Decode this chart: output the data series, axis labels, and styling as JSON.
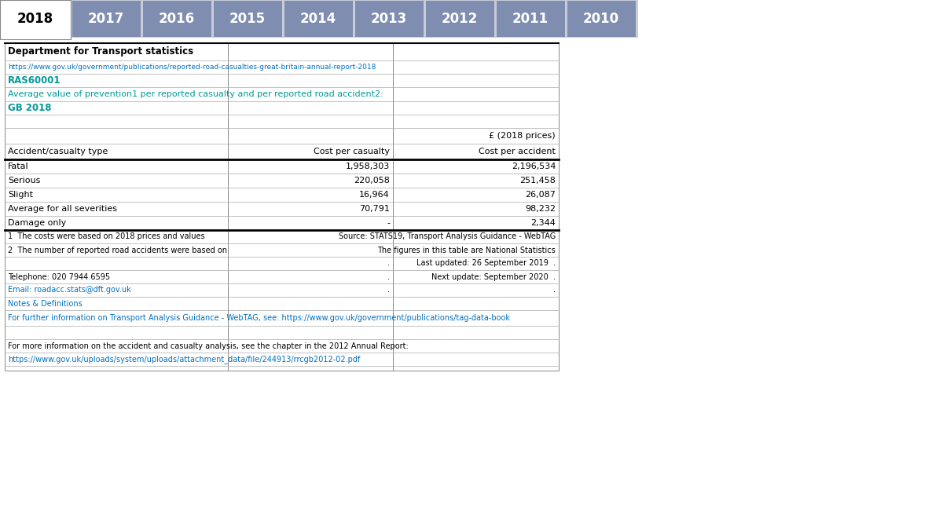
{
  "tab_years": [
    "2018",
    "2017",
    "2016",
    "2015",
    "2014",
    "2013",
    "2012",
    "2011",
    "2010"
  ],
  "tab_active": "2018",
  "tab_bg_color": "#7f8db0",
  "tab_active_bg": "#ffffff",
  "tab_text_color": "#ffffff",
  "tab_active_text": "#000000",
  "title_text": "Department for Transport statistics",
  "url1": "https://www.gov.uk/government/publications/reported-road-casualties-great-britain-annual-report-2018",
  "code": "RAS60001",
  "subtitle": "Average value of prevention1 per reported casualty and per reported road accident2:",
  "period": "GB 2018",
  "col_header_right": "£ (2018 prices)",
  "col1_header": "Accident/casualty type",
  "col2_header": "Cost per casualty",
  "col3_header": "Cost per accident",
  "rows": [
    [
      "Fatal",
      "1,958,303",
      "2,196,534"
    ],
    [
      "Serious",
      "220,058",
      "251,458"
    ],
    [
      "Slight",
      "16,964",
      "26,087"
    ],
    [
      "Average for all severities",
      "70,791",
      "98,232"
    ],
    [
      "Damage only",
      "-",
      "2,344"
    ]
  ],
  "footnote1": "1  The costs were based on 2018 prices and values",
  "footnote1_right": "Source: STATS19, Transport Analysis Guidance - WebTAG",
  "footnote2": "2  The number of reported road accidents were based on",
  "footnote2_right": "The figures in this table are National Statistics",
  "footnote3_right": "Last updated: 26 September 2019  .",
  "footnote4_left": "Telephone: 020 7944 6595",
  "footnote4_right": "Next update: September 2020  .",
  "email_text": "Email: roadacc.stats@dft.gov.uk",
  "notes_text": "Notes & Definitions",
  "further_info": "For further information on Transport Analysis Guidance - WebTAG, see: https://www.gov.uk/government/publications/tag-data-book",
  "more_info": "For more information on the accident and casualty analysis, see the chapter in the 2012 Annual Report:",
  "more_info_url": "https://www.gov.uk/uploads/system/uploads/attachment_data/file/244913/rrcgb2012-02.pdf",
  "link_color": "#0070c0",
  "cyan_color": "#009999",
  "black": "#000000",
  "white": "#ffffff",
  "tab_strip_bg": "#c8ccd8"
}
